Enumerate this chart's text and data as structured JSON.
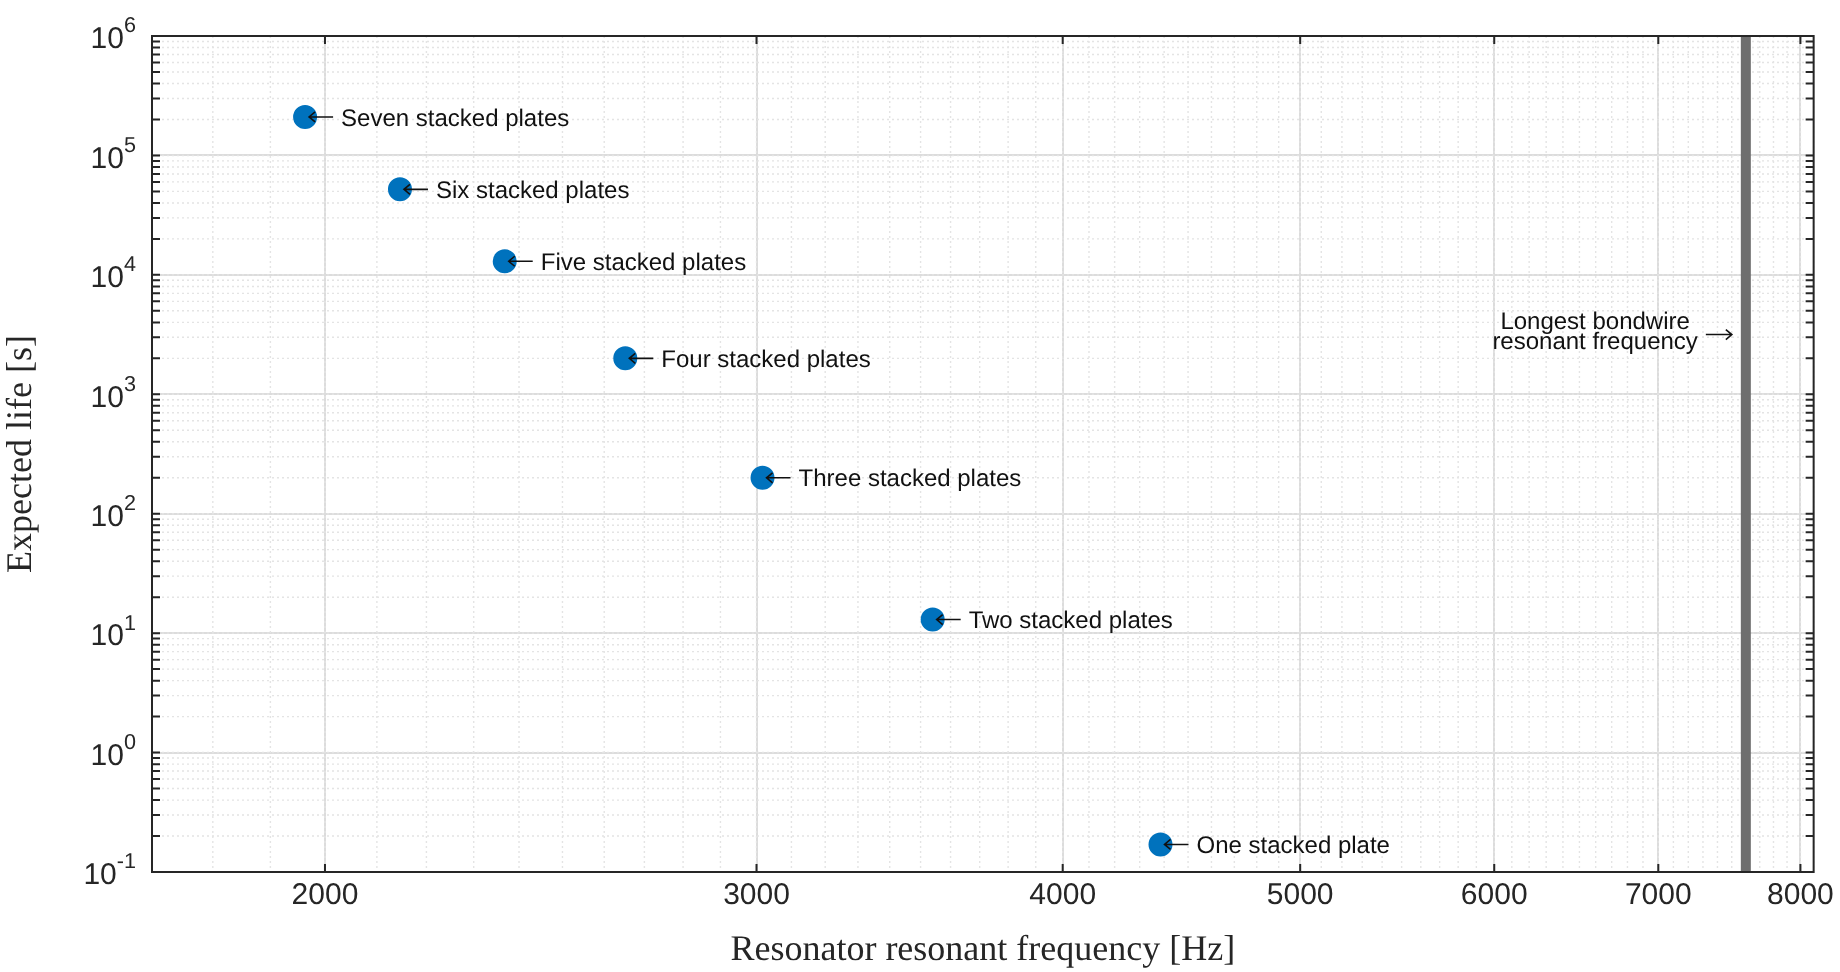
{
  "chart_data": {
    "type": "scatter",
    "xlabel": "Resonator resonant frequency [Hz]",
    "ylabel": "Expected life [s]",
    "log": "xy",
    "grid": true,
    "legend": false,
    "marker": "circle",
    "xlim": [
      1700,
      8100
    ],
    "xticks": [
      2000,
      3000,
      4000,
      5000,
      6000,
      7000,
      8000
    ],
    "ylim": [
      0.1,
      1000000
    ],
    "yticks": [
      {
        "value": 0.1,
        "label": "10$^{-1}$"
      },
      {
        "value": 1,
        "label": "10$^{0}$"
      },
      {
        "value": 10,
        "label": "10$^{1}$"
      },
      {
        "value": 100,
        "label": "10$^{2}$"
      },
      {
        "value": 1000,
        "label": "10$^{3}$"
      },
      {
        "value": 10000,
        "label": "10$^{4}$"
      },
      {
        "value": 100000,
        "label": "10$^{5}$"
      },
      {
        "value": 1000000,
        "label": "10$^{6}$"
      }
    ],
    "series": [
      {
        "color": "#0072bd",
        "x": [
          1963,
          2146,
          2368,
          2652,
          3017,
          3540,
          4385
        ],
        "values": [
          210000,
          52000,
          13000,
          2000,
          200,
          13,
          0.17
        ]
      }
    ],
    "annotations": [
      {
        "text": "Seven stacked plates",
        "x": 1963,
        "y": 210000
      },
      {
        "text": "Six stacked plates",
        "x": 2146,
        "y": 52000
      },
      {
        "text": "Five stacked plates",
        "x": 2368,
        "y": 13000
      },
      {
        "text": "Four stacked plates",
        "x": 2652,
        "y": 2000
      },
      {
        "text": "Three stacked plates",
        "x": 3017,
        "y": 200
      },
      {
        "text": "Two stacked plates",
        "x": 3540,
        "y": 13
      },
      {
        "text": "One stacked plate",
        "x": 4385,
        "y": 0.17
      }
    ],
    "ref_lines": [
      {
        "axis": "x",
        "value": 7600,
        "label": "Longest bondwire resonant frequency",
        "color": "#6e6e6e"
      }
    ]
  }
}
